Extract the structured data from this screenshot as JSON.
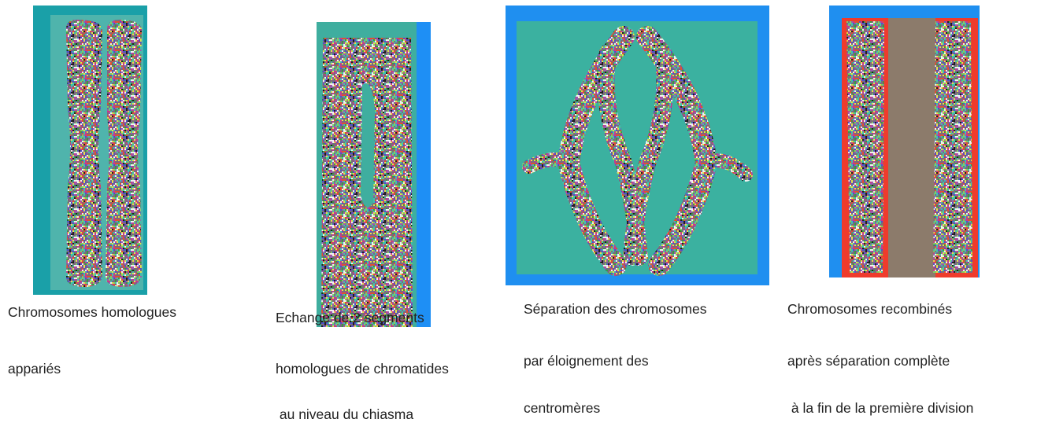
{
  "panels": [
    {
      "caption": [
        "Chromosomes homologues",
        "appariés"
      ]
    },
    {
      "caption": [
        "Echange de 2 segments",
        "homologues de chromatides",
        " au niveau du chiasma"
      ]
    },
    {
      "caption": [
        "Séparation des chromosomes",
        "par éloignement des",
        "centromères"
      ]
    },
    {
      "caption": [
        "Chromosomes recombinés",
        "après séparation complète",
        " à la fin de la première division"
      ]
    }
  ]
}
